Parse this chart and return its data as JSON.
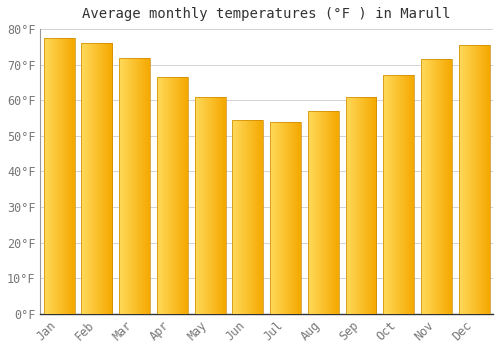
{
  "title": "Average monthly temperatures (°F ) in Marull",
  "months": [
    "Jan",
    "Feb",
    "Mar",
    "Apr",
    "May",
    "Jun",
    "Jul",
    "Aug",
    "Sep",
    "Oct",
    "Nov",
    "Dec"
  ],
  "values": [
    77.5,
    76.0,
    72.0,
    66.5,
    61.0,
    54.5,
    54.0,
    57.0,
    61.0,
    67.0,
    71.5,
    75.5
  ],
  "bar_color_right": "#F5A800",
  "bar_color_left": "#FFCF55",
  "background_color": "#FFFFFF",
  "grid_color": "#CCCCCC",
  "ylim": [
    0,
    80
  ],
  "yticks": [
    0,
    10,
    20,
    30,
    40,
    50,
    60,
    70,
    80
  ],
  "ytick_labels": [
    "0°F",
    "10°F",
    "20°F",
    "30°F",
    "40°F",
    "50°F",
    "60°F",
    "70°F",
    "80°F"
  ],
  "title_fontsize": 10,
  "tick_fontsize": 8.5,
  "title_font_family": "monospace",
  "bar_width": 0.82,
  "spine_color": "#999999"
}
